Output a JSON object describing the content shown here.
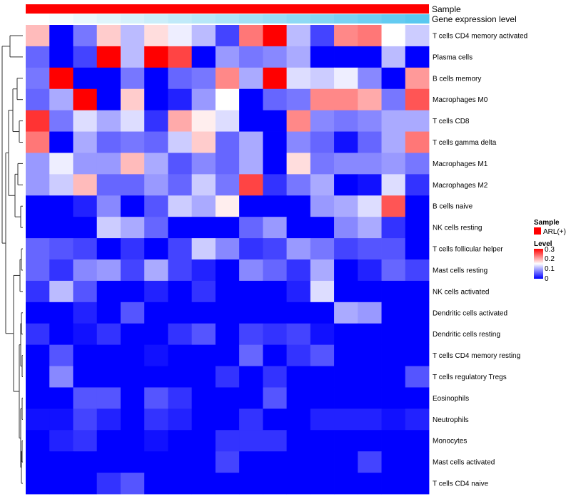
{
  "chart_data": {
    "type": "heatmap",
    "title": "",
    "column_annotations": [
      {
        "name": "Sample",
        "color": "#ff0000"
      },
      {
        "name": "Gene expression level",
        "gradient": [
          "#ffffff",
          "#5ac8f0"
        ]
      }
    ],
    "rows": [
      "T cells CD4 memory activated",
      "Plasma cells",
      "B cells memory",
      "Macrophages M0",
      "T cells CD8",
      "T cells gamma delta",
      "Macrophages M1",
      "Macrophages M2",
      "B cells naive",
      "NK cells resting",
      "T cells follicular helper",
      "Mast cells resting",
      "NK cells activated",
      "Dendritic cells activated",
      "Dendritic cells resting",
      "T cells CD4 memory resting",
      "T cells regulatory  Tregs",
      "Eosinophils",
      "Neutrophils",
      "Monocytes",
      "Mast cells activated",
      "T cells CD4 naive"
    ],
    "n_columns": 17,
    "values": [
      [
        0.19,
        0.0,
        0.07,
        0.18,
        0.11,
        0.17,
        0.14,
        0.11,
        0.04,
        0.23,
        0.3,
        0.11,
        0.04,
        0.22,
        0.23,
        0.15,
        0.12
      ],
      [
        0.06,
        0.0,
        0.04,
        0.3,
        0.11,
        0.3,
        0.26,
        0.0,
        0.09,
        0.07,
        0.08,
        0.1,
        0.0,
        0.0,
        0.0,
        0.11,
        0.0
      ],
      [
        0.07,
        0.3,
        0.0,
        0.0,
        0.07,
        0.0,
        0.06,
        0.07,
        0.22,
        0.1,
        0.3,
        0.13,
        0.12,
        0.14,
        0.08,
        0.0,
        0.21
      ],
      [
        0.06,
        0.1,
        0.3,
        0.0,
        0.18,
        0.0,
        0.02,
        0.09,
        0.15,
        0.0,
        0.06,
        0.07,
        0.22,
        0.22,
        0.2,
        0.07,
        0.25
      ],
      [
        0.27,
        0.07,
        0.13,
        0.1,
        0.13,
        0.03,
        0.2,
        0.16,
        0.13,
        0.0,
        0.0,
        0.22,
        0.08,
        0.07,
        0.08,
        0.1,
        0.1
      ],
      [
        0.23,
        0.0,
        0.1,
        0.06,
        0.07,
        0.06,
        0.12,
        0.18,
        0.06,
        0.1,
        0.0,
        0.08,
        0.06,
        0.01,
        0.06,
        0.1,
        0.23
      ],
      [
        0.09,
        0.14,
        0.09,
        0.09,
        0.19,
        0.1,
        0.05,
        0.08,
        0.06,
        0.1,
        0.0,
        0.17,
        0.07,
        0.08,
        0.08,
        0.09,
        0.07
      ],
      [
        0.09,
        0.12,
        0.19,
        0.06,
        0.06,
        0.09,
        0.06,
        0.12,
        0.07,
        0.26,
        0.03,
        0.07,
        0.1,
        0.0,
        0.01,
        0.13,
        0.03
      ],
      [
        0.0,
        0.0,
        0.02,
        0.08,
        0.0,
        0.05,
        0.12,
        0.1,
        0.16,
        0.0,
        0.0,
        0.0,
        0.09,
        0.1,
        0.13,
        0.25,
        0.0
      ],
      [
        0.0,
        0.0,
        0.0,
        0.12,
        0.1,
        0.06,
        0.0,
        0.0,
        0.0,
        0.06,
        0.09,
        0.0,
        0.0,
        0.08,
        0.1,
        0.03,
        0.0
      ],
      [
        0.06,
        0.05,
        0.04,
        0.0,
        0.03,
        0.0,
        0.04,
        0.12,
        0.08,
        0.03,
        0.04,
        0.09,
        0.07,
        0.04,
        0.05,
        0.05,
        0.0
      ],
      [
        0.06,
        0.03,
        0.08,
        0.09,
        0.04,
        0.1,
        0.04,
        0.02,
        0.0,
        0.08,
        0.06,
        0.03,
        0.1,
        0.0,
        0.02,
        0.06,
        0.04
      ],
      [
        0.03,
        0.11,
        0.05,
        0.0,
        0.0,
        0.02,
        0.0,
        0.03,
        0.0,
        0.0,
        0.0,
        0.02,
        0.13,
        0.0,
        0.0,
        0.0,
        0.0
      ],
      [
        0.0,
        0.0,
        0.02,
        0.0,
        0.05,
        0.0,
        0.0,
        0.0,
        0.0,
        0.0,
        0.0,
        0.0,
        0.0,
        0.1,
        0.09,
        0.0,
        0.0
      ],
      [
        0.03,
        0.0,
        0.01,
        0.03,
        0.0,
        0.0,
        0.03,
        0.05,
        0.0,
        0.04,
        0.03,
        0.04,
        0.01,
        0.0,
        0.0,
        0.0,
        0.0
      ],
      [
        0.0,
        0.05,
        0.0,
        0.0,
        0.0,
        0.01,
        0.0,
        0.0,
        0.0,
        0.06,
        0.0,
        0.03,
        0.05,
        0.0,
        0.0,
        0.0,
        0.0
      ],
      [
        0.0,
        0.08,
        0.0,
        0.0,
        0.0,
        0.0,
        0.0,
        0.0,
        0.03,
        0.0,
        0.03,
        0.0,
        0.0,
        0.0,
        0.0,
        0.0,
        0.05
      ],
      [
        0.0,
        0.0,
        0.05,
        0.05,
        0.0,
        0.05,
        0.03,
        0.0,
        0.0,
        0.0,
        0.05,
        0.0,
        0.0,
        0.0,
        0.0,
        0.0,
        0.0
      ],
      [
        0.01,
        0.01,
        0.04,
        0.02,
        0.0,
        0.03,
        0.02,
        0.0,
        0.0,
        0.03,
        0.0,
        0.0,
        0.02,
        0.02,
        0.02,
        0.01,
        0.02
      ],
      [
        0.0,
        0.02,
        0.03,
        0.0,
        0.0,
        0.01,
        0.0,
        0.0,
        0.03,
        0.03,
        0.03,
        0.0,
        0.0,
        0.0,
        0.0,
        0.0,
        0.0
      ],
      [
        0.0,
        0.0,
        0.0,
        0.0,
        0.0,
        0.0,
        0.0,
        0.0,
        0.04,
        0.0,
        0.0,
        0.0,
        0.0,
        0.0,
        0.04,
        0.0,
        0.0
      ],
      [
        0.0,
        0.0,
        0.0,
        0.03,
        0.05,
        0.0,
        0.0,
        0.0,
        0.0,
        0.0,
        0.0,
        0.0,
        0.0,
        0.0,
        0.0,
        0.0,
        0.0
      ]
    ],
    "color_scale": {
      "low": "#0000ff",
      "mid": "#ffffff",
      "high": "#ff0000",
      "min": 0,
      "mid_value": 0.15,
      "max": 0.3
    },
    "legend": {
      "sample_title": "Sample",
      "sample_entry": "ARL(+)",
      "sample_color": "#ff0000",
      "level_title": "Level",
      "level_ticks": [
        "0.3",
        "0.2",
        "0.1",
        "0"
      ],
      "position": "right"
    },
    "row_dendrogram": true
  }
}
